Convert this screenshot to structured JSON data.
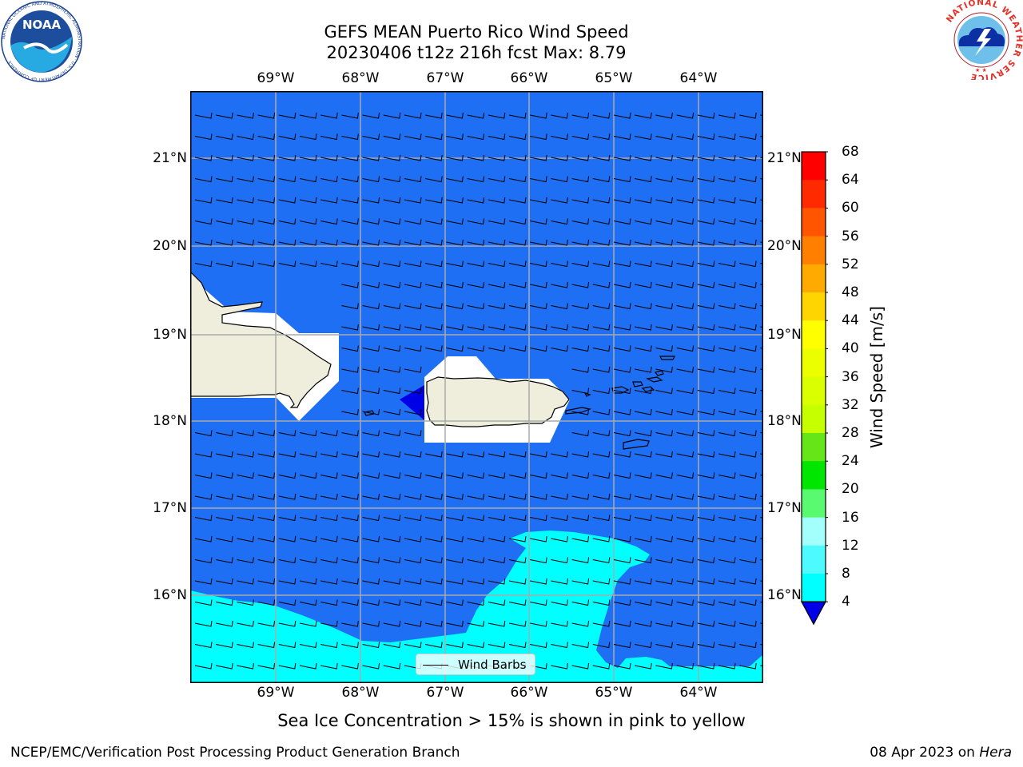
{
  "title": {
    "line1": "GEFS MEAN Puerto Rico Wind Speed",
    "line2": "20230406 t12z 216h fcst   Max: 8.79"
  },
  "logos": {
    "left": "NOAA",
    "left_ring": "NATIONAL OCEANIC AND ATMOSPHERIC ADMINISTRATION · U.S. DEPARTMENT OF COMMERCE",
    "right": "NATIONAL WEATHER SERVICE"
  },
  "map": {
    "lon_labels": [
      "69°W",
      "68°W",
      "67°W",
      "66°W",
      "65°W",
      "64°W"
    ],
    "lat_labels": [
      "21°N",
      "20°N",
      "19°N",
      "18°N",
      "17°N",
      "16°N"
    ],
    "lon_range": [
      -70.0,
      -63.25
    ],
    "lat_range": [
      15.0,
      21.75
    ],
    "wind_direction": "east-southeast",
    "legend": "Wind Barbs",
    "colors": {
      "ocean_4_8": "#1f6ff5",
      "ocean_8_12": "#00ffff",
      "below_4": "#0000e6",
      "land": "#efeedd",
      "grid": "#aaaaaa"
    }
  },
  "colorbar": {
    "label": "Wind Speed [m/s]",
    "ticks": [
      "68",
      "64",
      "60",
      "56",
      "52",
      "48",
      "44",
      "40",
      "36",
      "32",
      "28",
      "24",
      "20",
      "16",
      "12",
      "8",
      "4"
    ],
    "colors": [
      "#ff0000",
      "#ff2a00",
      "#ff5500",
      "#ff8000",
      "#ffaa00",
      "#ffd500",
      "#ffff00",
      "#ecff00",
      "#d9ff00",
      "#c6ff00",
      "#66e619",
      "#00e600",
      "#59f970",
      "#a2fffb",
      "#4dfbff",
      "#00ffff",
      "#1f6ff5"
    ],
    "under_color": "#0000e6"
  },
  "caption": "Sea Ice Concentration > 15% is shown in pink to yellow",
  "footer": {
    "left": "NCEP/EMC/Verification Post Processing Product Generation Branch",
    "right_date": "08 Apr 2023 on ",
    "right_host": "Hera"
  }
}
